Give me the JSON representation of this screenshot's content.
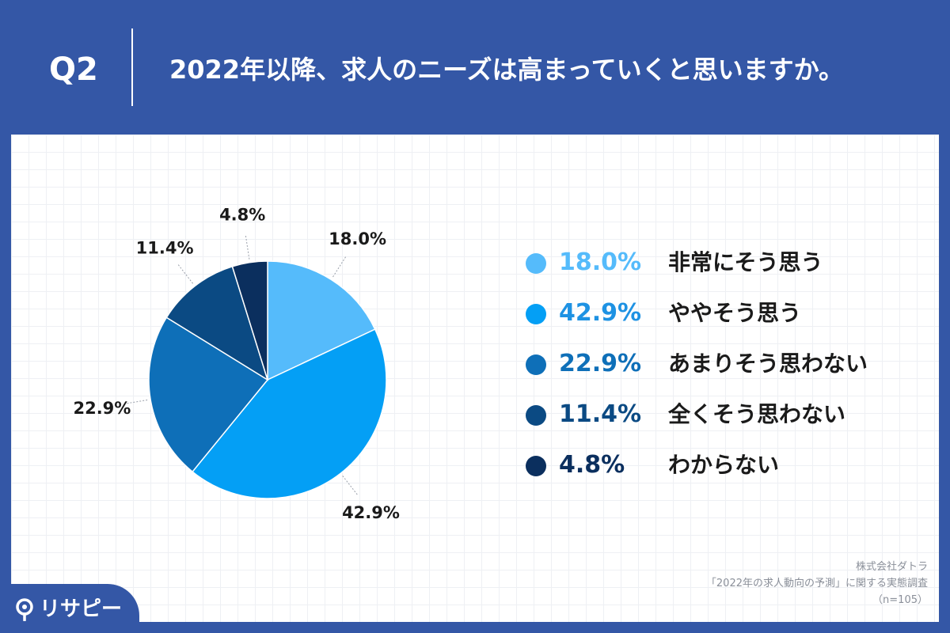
{
  "header": {
    "question_label": "Q2",
    "question_text": "2022年以降、求人のニーズは高まっていくと思いますか。"
  },
  "chart_data": {
    "type": "pie",
    "categories": [
      "非常にそう思う",
      "ややそう思う",
      "あまりそう思わない",
      "全くそう思わない",
      "わからない"
    ],
    "values": [
      18.0,
      42.9,
      22.9,
      11.4,
      4.8
    ],
    "value_labels": [
      "18.0%",
      "42.9%",
      "22.9%",
      "11.4%",
      "4.8%"
    ],
    "colors": [
      "#55bbfb",
      "#049ff5",
      "#0e6fb8",
      "#0b4a83",
      "#0b2f5e"
    ],
    "legend_text_colors": [
      "#55bbfb",
      "#1e92e3",
      "#0e6fb8",
      "#0b4a83",
      "#0b2f5e"
    ],
    "legend_placement": "right"
  },
  "source": {
    "company": "株式会社ダトラ",
    "survey": "「2022年の求人動向の予測」に関する実態調査",
    "sample": "（n=105）"
  },
  "logo": {
    "text": "リサピー",
    "icon": "pin-icon"
  }
}
